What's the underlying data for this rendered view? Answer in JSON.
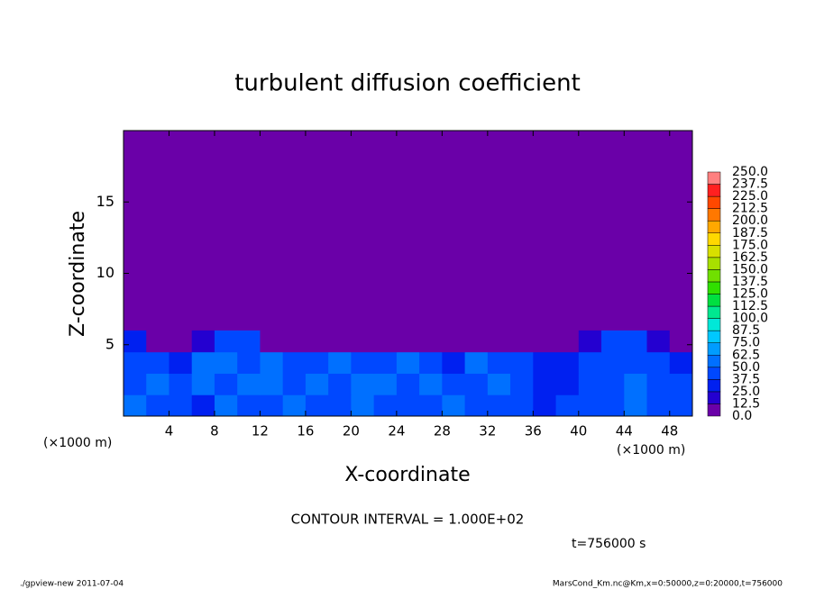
{
  "chart_data": {
    "type": "heatmap",
    "title": "turbulent diffusion coefficient",
    "x_label": "X-coordinate",
    "y_label": "Z-coordinate",
    "x_unit": "(×1000 m)",
    "x_unit_right": "(×1000 m)",
    "xlim": [
      0,
      50
    ],
    "xticks": [
      4,
      8,
      12,
      16,
      20,
      24,
      28,
      32,
      36,
      40,
      44,
      48
    ],
    "ylim": [
      0,
      20
    ],
    "yticks": [
      5,
      10,
      15
    ],
    "field": {
      "x": [
        1,
        3,
        5,
        7,
        9,
        11,
        13,
        15,
        17,
        19,
        21,
        23,
        25,
        27,
        29,
        31,
        33,
        35,
        37,
        39,
        41,
        43,
        45,
        47,
        49
      ],
      "z": [
        0.75,
        2.25,
        3.75,
        5.25
      ],
      "values": [
        [
          50,
          40,
          45,
          35,
          50,
          40,
          45,
          55,
          45,
          40,
          50,
          45,
          40,
          45,
          50,
          40,
          45,
          40,
          35,
          40,
          45,
          40,
          60,
          45,
          40
        ],
        [
          45,
          50,
          40,
          55,
          45,
          50,
          55,
          40,
          50,
          45,
          55,
          50,
          45,
          50,
          40,
          45,
          55,
          45,
          30,
          35,
          40,
          45,
          50,
          45,
          40
        ],
        [
          40,
          45,
          30,
          50,
          55,
          45,
          50,
          45,
          40,
          50,
          45,
          40,
          50,
          45,
          35,
          50,
          45,
          40,
          25,
          30,
          40,
          45,
          45,
          40,
          35
        ],
        [
          25,
          0,
          0,
          20,
          40,
          40,
          0,
          0,
          0,
          0,
          0,
          0,
          0,
          0,
          0,
          0,
          0,
          0,
          0,
          0,
          20,
          40,
          40,
          20,
          0
        ]
      ]
    },
    "colorbar": {
      "levels": [
        {
          "value": 0,
          "label": "0.0"
        },
        {
          "value": 12.5,
          "label": "12.5"
        },
        {
          "value": 25,
          "label": "25.0"
        },
        {
          "value": 37.5,
          "label": "37.5"
        },
        {
          "value": 50,
          "label": "50.0"
        },
        {
          "value": 62.5,
          "label": "62.5"
        },
        {
          "value": 75,
          "label": "75.0"
        },
        {
          "value": 87.5,
          "label": "87.5"
        },
        {
          "value": 100,
          "label": "100.0"
        },
        {
          "value": 112.5,
          "label": "112.5"
        },
        {
          "value": 125,
          "label": "125.0"
        },
        {
          "value": 137.5,
          "label": "137.5"
        },
        {
          "value": 150,
          "label": "150.0"
        },
        {
          "value": 162.5,
          "label": "162.5"
        },
        {
          "value": 175,
          "label": "175.0"
        },
        {
          "value": 187.5,
          "label": "187.5"
        },
        {
          "value": 200,
          "label": "200.0"
        },
        {
          "value": 212.5,
          "label": "212.5"
        },
        {
          "value": 225,
          "label": "225.0"
        },
        {
          "value": 237.5,
          "label": "237.5"
        },
        {
          "value": 250,
          "label": "250.0"
        }
      ],
      "colors": [
        "#6a00a8",
        "#2400d0",
        "#0020f0",
        "#0048ff",
        "#0070ff",
        "#009cff",
        "#00c8ff",
        "#00e8d8",
        "#00e890",
        "#00e040",
        "#30e000",
        "#70e000",
        "#a8e000",
        "#d8e000",
        "#ffd800",
        "#ffa800",
        "#ff7800",
        "#ff4800",
        "#ff2020",
        "#ff8080"
      ]
    },
    "contour_note": "CONTOUR INTERVAL = 1.000E+02",
    "time_note": "t=756000 s",
    "footer_left": "./gpview-new  2011-07-04",
    "footer_right": "MarsCond_Km.nc@Km,x=0:50000,z=0:20000,t=756000"
  }
}
